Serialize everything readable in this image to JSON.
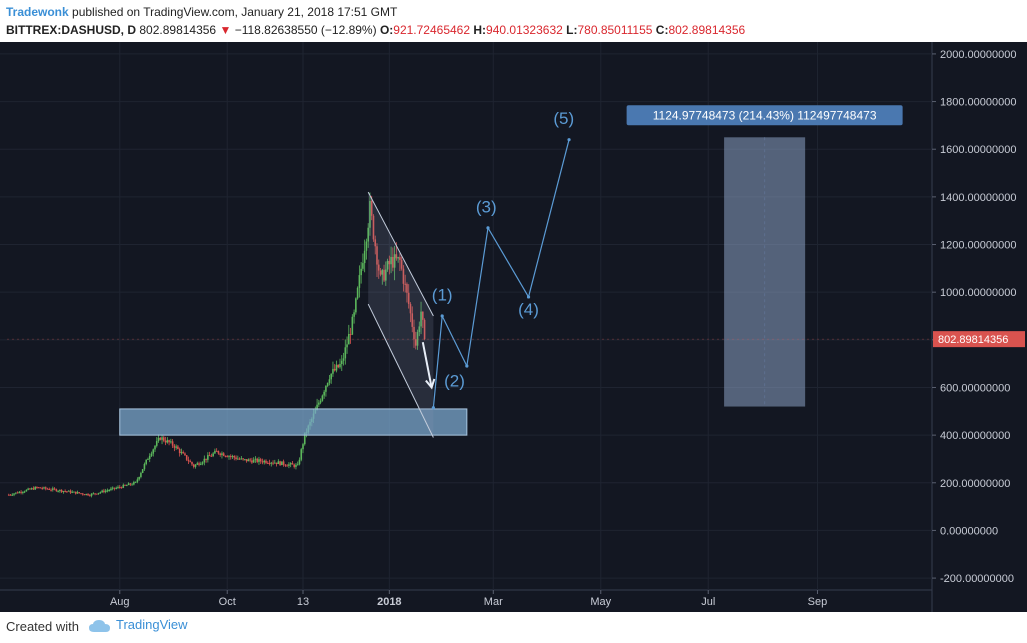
{
  "header": {
    "author": "Tradewonk",
    "published_text": "published on TradingView.com, January 21, 2018 17:51 GMT",
    "symbol": "BITTREX:DASHUSD, D",
    "last": "802.89814356",
    "change_arrow": "▼",
    "change": "−118.82638550 (−12.89%)",
    "ohlc": [
      {
        "label": "O:",
        "value": "921.72465462"
      },
      {
        "label": "H:",
        "value": "940.01323632"
      },
      {
        "label": "L:",
        "value": "780.85011155"
      },
      {
        "label": "C:",
        "value": "802.89814356"
      }
    ]
  },
  "footer": {
    "created_with": "Created with",
    "brand": "TradingView"
  },
  "colors": {
    "background": "#131722",
    "up": "#5cb85c",
    "down": "#d9534f",
    "annotation": "#5b9bd5",
    "box": "#7ba7cc",
    "price_tag": "#d9534f"
  },
  "chart_data": {
    "type": "candlestick",
    "ylim": [
      -250,
      2050
    ],
    "y_ticks": [
      2000,
      1800,
      1600,
      1400,
      1200,
      1000,
      800,
      600,
      400,
      200,
      0,
      -200
    ],
    "y_tick_labels": [
      "2000.00000000",
      "1800.00000000",
      "1600.00000000",
      "1400.00000000",
      "1200.00000000",
      "1000.00000000",
      "800.00000000",
      "600.00000000",
      "400.00000000",
      "200.00000000",
      "0.00000000",
      "-200.00000000"
    ],
    "x_ticks": [
      {
        "label": "Aug",
        "date": "2017-08-01",
        "bold": false
      },
      {
        "label": "Oct",
        "date": "2017-10-01",
        "bold": false
      },
      {
        "label": "13",
        "date": "2017-11-13",
        "bold": false
      },
      {
        "label": "2018",
        "date": "2018-01-01",
        "bold": true
      },
      {
        "label": "Mar",
        "date": "2018-03-01",
        "bold": false
      },
      {
        "label": "May",
        "date": "2018-05-01",
        "bold": false
      },
      {
        "label": "Jul",
        "date": "2018-07-01",
        "bold": false
      },
      {
        "label": "Sep",
        "date": "2018-09-01",
        "bold": false
      }
    ],
    "x_range": [
      "2017-05-29",
      "2018-11-05"
    ],
    "price_anchors": [
      [
        "2017-05-30",
        150
      ],
      [
        "2017-06-15",
        180
      ],
      [
        "2017-07-01",
        165
      ],
      [
        "2017-07-15",
        150
      ],
      [
        "2017-07-31",
        180
      ],
      [
        "2017-08-10",
        200
      ],
      [
        "2017-08-18",
        320
      ],
      [
        "2017-08-24",
        390
      ],
      [
        "2017-09-01",
        355
      ],
      [
        "2017-09-12",
        270
      ],
      [
        "2017-09-25",
        330
      ],
      [
        "2017-10-10",
        295
      ],
      [
        "2017-10-25",
        290
      ],
      [
        "2017-11-10",
        270
      ],
      [
        "2017-11-14",
        400
      ],
      [
        "2017-11-20",
        500
      ],
      [
        "2017-11-28",
        650
      ],
      [
        "2017-12-05",
        700
      ],
      [
        "2017-12-12",
        900
      ],
      [
        "2017-12-18",
        1200
      ],
      [
        "2017-12-21",
        1350
      ],
      [
        "2017-12-27",
        1050
      ],
      [
        "2018-01-02",
        1130
      ],
      [
        "2018-01-07",
        1130
      ],
      [
        "2018-01-12",
        950
      ],
      [
        "2018-01-16",
        780
      ],
      [
        "2018-01-19",
        920
      ],
      [
        "2018-01-21",
        803
      ]
    ],
    "last_price": 802.89814356,
    "last_price_label": "802.89814356",
    "support_zone": {
      "x_start": "2017-08-01",
      "x_end": "2018-02-14",
      "y_low": 400,
      "y_high": 510
    },
    "channel_lines": [
      {
        "from": [
          "2017-12-20",
          1420
        ],
        "to": [
          "2018-01-26",
          900
        ]
      },
      {
        "from": [
          "2017-12-20",
          950
        ],
        "to": [
          "2018-01-26",
          390
        ]
      }
    ],
    "arrow": {
      "from": [
        "2018-01-20",
        790
      ],
      "to": [
        "2018-01-25",
        600
      ]
    },
    "wave_path": [
      [
        "2018-01-26",
        515
      ],
      [
        "2018-01-31",
        900
      ],
      [
        "2018-02-14",
        690
      ],
      [
        "2018-02-26",
        1270
      ],
      [
        "2018-03-21",
        980
      ],
      [
        "2018-04-13",
        1640
      ]
    ],
    "wave_labels": [
      {
        "text": "(1)",
        "date": "2018-01-31",
        "y": 965
      },
      {
        "text": "(2)",
        "date": "2018-02-07",
        "y": 605
      },
      {
        "text": "(3)",
        "date": "2018-02-25",
        "y": 1335
      },
      {
        "text": "(4)",
        "date": "2018-03-21",
        "y": 905
      },
      {
        "text": "(5)",
        "date": "2018-04-10",
        "y": 1705
      }
    ],
    "measure_box": {
      "x_start": "2018-07-10",
      "x_end": "2018-08-25",
      "y_low": 520,
      "y_high": 1650
    },
    "measure_label": "1124.97748473 (214.43%) 112497748473"
  }
}
